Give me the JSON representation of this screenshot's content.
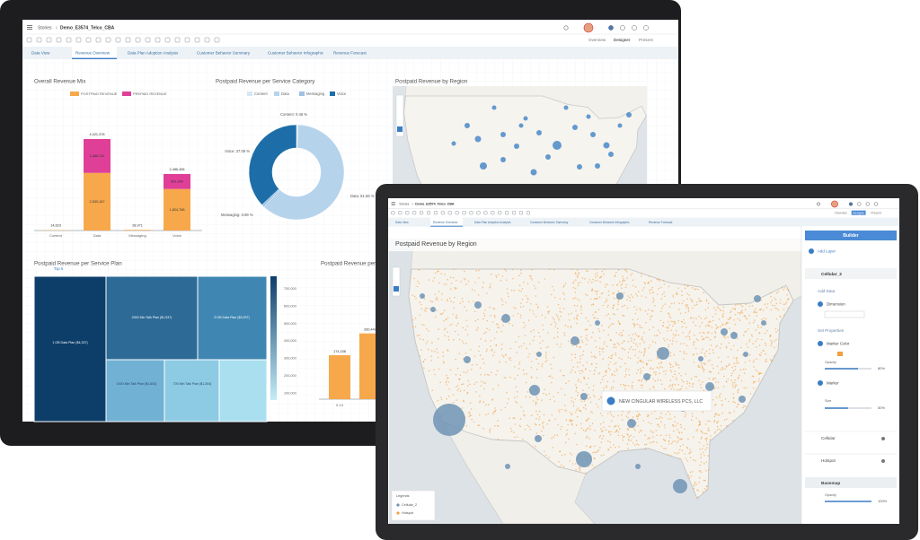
{
  "back_screen": {
    "breadcrumb": [
      "Stories",
      "Demo_E3574_Telco_CBA"
    ],
    "modes": [
      "Overview",
      "Designer",
      "Present"
    ],
    "tabs": [
      "Data View",
      "Revenue Overview",
      "Data Plan Adoption Analysis",
      "Customer Behavior Summary",
      "Customer Behavior Infographic",
      "Revenue Forecast"
    ],
    "revenue_mix": {
      "title": "Overall Revenue Mix",
      "categories": [
        "Content",
        "Data",
        "Messaging",
        "Voice"
      ],
      "series": [
        {
          "name": "POSTPAID REVENUE",
          "color": "#f7a84b",
          "values": [
            14823,
            2533167,
            28971,
            1824768
          ],
          "value_labels": [
            null,
            "2,533,167",
            null,
            "1,824,768"
          ]
        },
        {
          "name": "PREPAID REVENUE",
          "color": "#e03f98",
          "values": [
            null,
            1488211,
            null,
            661690
          ],
          "value_labels": [
            null,
            "1,488,211",
            null,
            "661,690"
          ]
        }
      ],
      "totals": [
        "14,823",
        "4,021,378",
        "28,971",
        "2,486,458"
      ]
    },
    "service_category": {
      "title": "Postpaid Revenue per Service Category",
      "segments": [
        {
          "name": "Content",
          "value": 0.46,
          "label": "Content: 0.46 %",
          "color": "#d6e6f4"
        },
        {
          "name": "Data",
          "value": 61.56,
          "label": "Data: 61.56 %",
          "color": "#b6d3ec"
        },
        {
          "name": "Messaging",
          "value": 0.89,
          "label": "Messaging: 0.89 %",
          "color": "#9fc2e2"
        },
        {
          "name": "Voice",
          "value": 37.09,
          "label": "Voice: 37.09 %",
          "color": "#1d6ea8"
        }
      ]
    },
    "region_map": {
      "title": "Postpaid Revenue by Region"
    },
    "service_plan": {
      "title": "Postpaid Revenue per Service Plan",
      "filter": "Top 5",
      "cells": [
        "1 GB Data Plan ($4,337)",
        "2000 Min Talk Plan ($1,937)",
        "5 GB Data Plan ($3,937)",
        "1000 Min Talk Plan ($1,603)",
        "700 Min Talk Plan ($1,304)"
      ],
      "scale": [
        "700,000",
        "600,000",
        "500,000",
        "400,000",
        "300,000",
        "200,000",
        "100,000"
      ]
    },
    "age_group": {
      "title": "Postpaid Revenue per Age",
      "bars": [
        {
          "value": 174158,
          "label": "174,158"
        },
        {
          "value": 260447,
          "label": "260,447"
        }
      ],
      "categories": [
        "0-14"
      ]
    }
  },
  "front_screen": {
    "breadcrumb": [
      "Stories",
      "Demo_E3574_Telco_CBA"
    ],
    "modes": [
      "Overview",
      "Designer",
      "Present"
    ],
    "tabs": [
      "Data View",
      "Revenue Overview",
      "Data Plan Adoption Analysis",
      "Customer Behavior Summary",
      "Customer Behavior Infographic",
      "Revenue Forecast"
    ],
    "map": {
      "title": "Postpaid Revenue by Region",
      "tooltip": "NEW CINGULAR WIRELESS PCS, LLC",
      "legend": {
        "title": "Legends",
        "items": [
          "Cellular_2",
          "Hotspot"
        ]
      }
    },
    "builder": {
      "title": "Builder",
      "add_layer": "Add Layer",
      "layer": "Cellular_2",
      "add_data": "Add Data",
      "dimension": "Dimension",
      "set_properties": "Set Properties",
      "marker_color": "Marker Color",
      "opacity": "Opacity",
      "opacity_value": "80%",
      "marker": "Marker",
      "size": "Size",
      "size_value": "50%",
      "layers": [
        "Cellular",
        "Hotspot"
      ],
      "basemap": "Basemap",
      "basemap_opacity": "Opacity",
      "basemap_opacity_value": "100%"
    }
  }
}
